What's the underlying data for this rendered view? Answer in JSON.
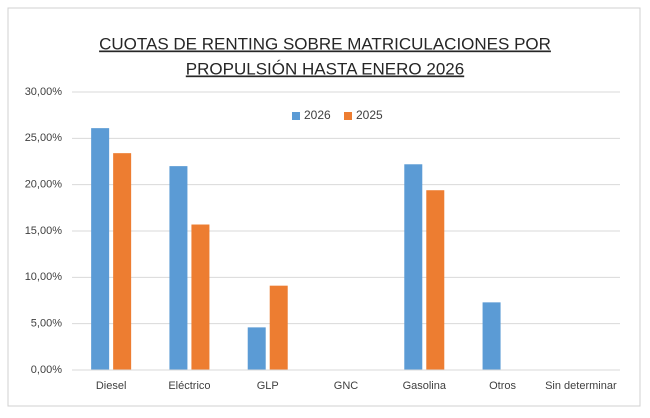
{
  "chart_data": {
    "type": "bar",
    "title": [
      "CUOTAS DE RENTING SOBRE MATRICULACIONES POR",
      "PROPULSIÓN HASTA ENERO 2026"
    ],
    "categories": [
      "Diesel",
      "Eléctrico",
      "GLP",
      "GNC",
      "Gasolina",
      "Otros",
      "Sin determinar"
    ],
    "series": [
      {
        "name": "2026",
        "color": "#5b9bd5",
        "values": [
          26.1,
          22.0,
          4.6,
          0,
          22.2,
          7.3,
          0
        ]
      },
      {
        "name": "2025",
        "color": "#ed7d31",
        "values": [
          23.4,
          15.7,
          9.1,
          0,
          19.4,
          0,
          0
        ]
      }
    ],
    "ylim": [
      0,
      30
    ],
    "yticks": [
      {
        "value": 0,
        "label": "0,00%"
      },
      {
        "value": 5,
        "label": "5,00%"
      },
      {
        "value": 10,
        "label": "10,00%"
      },
      {
        "value": 15,
        "label": "15,00%"
      },
      {
        "value": 20,
        "label": "20,00%"
      },
      {
        "value": 25,
        "label": "25,00%"
      },
      {
        "value": 30,
        "label": "30,00%"
      }
    ],
    "grid": true,
    "legend": "top"
  }
}
